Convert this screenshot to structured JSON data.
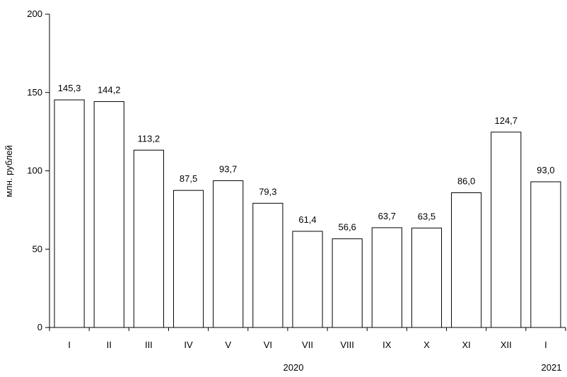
{
  "chart_data": {
    "type": "bar",
    "ylabel": "млн. рублей",
    "ylim": [
      0,
      200
    ],
    "yticks": [
      0,
      50,
      100,
      150,
      200
    ],
    "grid": false,
    "categories": [
      "I",
      "II",
      "III",
      "IV",
      "V",
      "VI",
      "VII",
      "VIII",
      "IX",
      "X",
      "XI",
      "XII",
      "I"
    ],
    "values": [
      145.3,
      144.2,
      113.2,
      87.5,
      93.7,
      79.3,
      61.4,
      56.6,
      63.7,
      63.5,
      86.0,
      124.7,
      93.0
    ],
    "value_labels": [
      "145,3",
      "144,2",
      "113,2",
      "87,5",
      "93,7",
      "79,3",
      "61,4",
      "56,6",
      "63,7",
      "63,5",
      "86,0",
      "124,7",
      "93,0"
    ],
    "year_labels": [
      "2020",
      "2021"
    ],
    "bar_fill": "#ffffff",
    "bar_stroke": "#000000"
  }
}
